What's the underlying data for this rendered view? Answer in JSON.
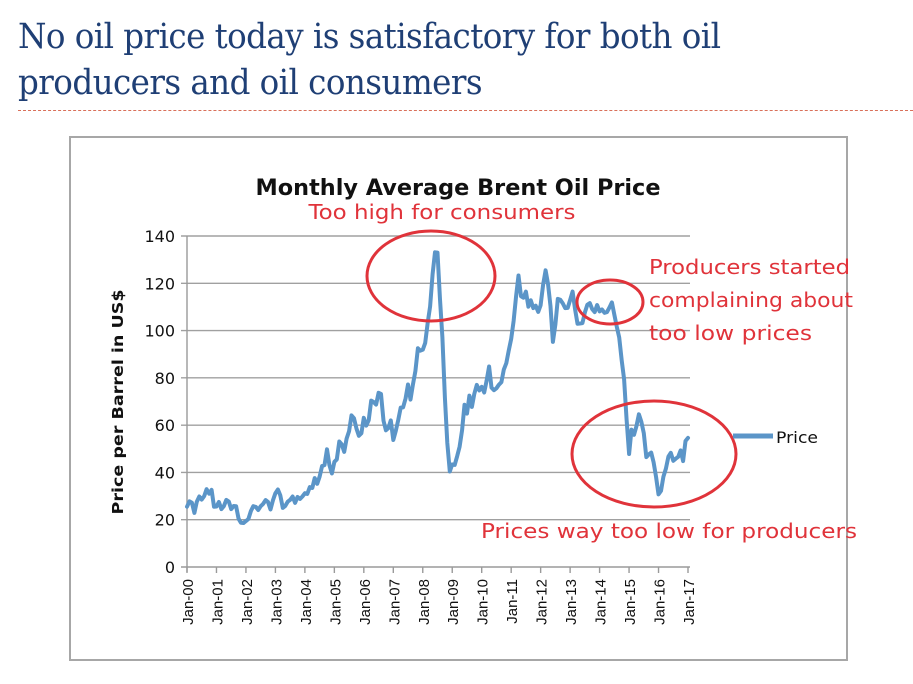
{
  "slide": {
    "title_line1": "No oil price today is satisfactory for both oil",
    "title_line2": "producers and oil consumers"
  },
  "colors": {
    "title": "#1f3f75",
    "rule": "#d9705a",
    "series": "#5b95c8",
    "annotation": "#e0333a",
    "grid": "#a0a0a0"
  },
  "chart_data": {
    "type": "line",
    "title": "Monthly Average Brent Oil Price",
    "xlabel": "",
    "ylabel": "Price per Barrel in US$",
    "ylim": [
      0,
      140
    ],
    "yticks": [
      "0",
      "20",
      "40",
      "60",
      "80",
      "100",
      "120",
      "140"
    ],
    "xticks": [
      "Jan-00",
      "Jan-01",
      "Jan-02",
      "Jan-03",
      "Jan-04",
      "Jan-05",
      "Jan-06",
      "Jan-07",
      "Jan-08",
      "Jan-09",
      "Jan-10",
      "Jan-11",
      "Jan-12",
      "Jan-13",
      "Jan-14",
      "Jan-15",
      "Jan-16",
      "Jan-17"
    ],
    "grid": true,
    "legend": {
      "position": "right",
      "entries": [
        "Price"
      ]
    },
    "series": [
      {
        "name": "Price",
        "start": "Jan-00",
        "frequency": "monthly",
        "values": [
          25.5,
          27.8,
          27.2,
          22.9,
          27.6,
          29.8,
          28.5,
          30.0,
          32.9,
          31.0,
          32.6,
          25.5,
          25.6,
          27.5,
          24.5,
          25.7,
          28.4,
          27.7,
          24.5,
          25.8,
          25.7,
          20.4,
          18.7,
          18.6,
          19.4,
          20.3,
          23.7,
          25.7,
          25.4,
          24.1,
          25.7,
          26.7,
          28.3,
          27.5,
          24.3,
          28.3,
          31.2,
          32.8,
          30.3,
          25.0,
          25.8,
          27.6,
          28.4,
          29.8,
          27.1,
          29.6,
          28.8,
          29.8,
          31.2,
          30.9,
          33.8,
          33.4,
          37.6,
          35.2,
          38.2,
          42.7,
          43.1,
          49.8,
          43.1,
          39.6,
          44.5,
          45.5,
          53.1,
          51.9,
          48.7,
          54.3,
          57.5,
          64.1,
          62.9,
          58.5,
          55.5,
          56.6,
          63.1,
          59.8,
          62.1,
          70.4,
          69.8,
          68.7,
          73.7,
          73.2,
          61.9,
          57.8,
          58.8,
          62.0,
          53.7,
          57.6,
          62.1,
          67.4,
          67.5,
          71.3,
          77.2,
          70.8,
          77.1,
          82.9,
          92.5,
          91.5,
          91.9,
          94.8,
          103.3,
          110.2,
          123.9,
          133.1,
          133.0,
          113.2,
          97.1,
          71.6,
          52.5,
          40.4,
          43.4,
          43.2,
          46.8,
          50.9,
          57.9,
          68.6,
          64.9,
          72.5,
          67.7,
          73.2,
          77.0,
          74.7,
          76.2,
          73.8,
          78.8,
          84.8,
          75.9,
          74.8,
          75.6,
          77.1,
          78.2,
          83.5,
          86.2,
          91.5,
          96.5,
          104.0,
          114.6,
          123.3,
          114.5,
          113.9,
          116.5,
          110.1,
          112.8,
          109.5,
          110.5,
          107.9,
          110.7,
          119.3,
          125.5,
          119.8,
          110.3,
          95.2,
          102.6,
          113.4,
          113.0,
          111.5,
          109.5,
          109.6,
          112.9,
          116.5,
          109.2,
          102.9,
          103.0,
          103.1,
          107.7,
          110.9,
          111.6,
          109.1,
          107.8,
          110.8,
          108.1,
          108.9,
          107.5,
          107.8,
          109.7,
          111.9,
          106.8,
          101.6,
          97.1,
          87.4,
          79.4,
          62.3,
          47.8,
          58.1,
          55.9,
          59.5,
          64.6,
          61.5,
          56.6,
          46.5,
          47.6,
          48.4,
          44.3,
          38.0,
          30.7,
          32.2,
          38.2,
          41.6,
          46.7,
          48.3,
          44.9,
          45.8,
          46.6,
          49.3,
          44.8,
          53.3,
          54.6
        ]
      }
    ],
    "annotations": [
      "Too high for consumers",
      "Producers started",
      "complaining about",
      "too low prices",
      "Prices way too low for producers"
    ]
  }
}
